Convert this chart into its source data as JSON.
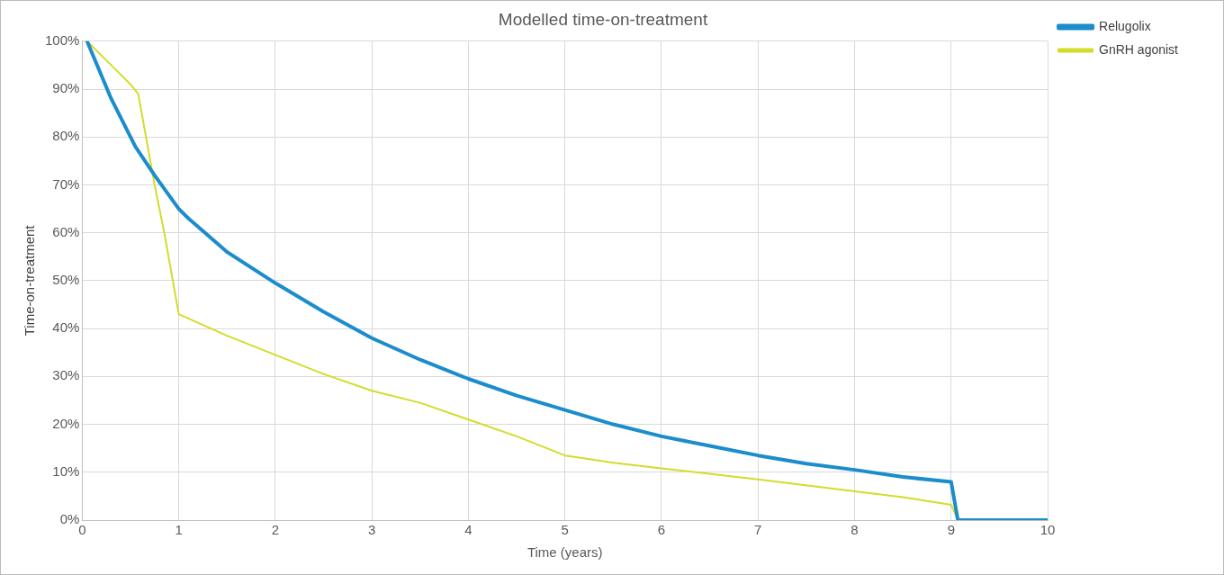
{
  "chart_data": {
    "type": "line",
    "title": "Modelled time-on-treatment",
    "xlabel": "Time (years)",
    "ylabel": "Time-on-treatment",
    "xlim": [
      0,
      10
    ],
    "xticks": [
      0,
      1,
      2,
      3,
      4,
      5,
      6,
      7,
      8,
      9,
      10
    ],
    "ylim": [
      0,
      100
    ],
    "yticks": [
      {
        "value": 0,
        "label": "0%"
      },
      {
        "value": 10,
        "label": "10%"
      },
      {
        "value": 20,
        "label": "20%"
      },
      {
        "value": 30,
        "label": "30%"
      },
      {
        "value": 40,
        "label": "40%"
      },
      {
        "value": 50,
        "label": "50%"
      },
      {
        "value": 60,
        "label": "60%"
      },
      {
        "value": 70,
        "label": "70%"
      },
      {
        "value": 80,
        "label": "80%"
      },
      {
        "value": 90,
        "label": "90%"
      },
      {
        "value": 100,
        "label": "100%"
      }
    ],
    "grid": true,
    "legend": "top right",
    "marker": "none",
    "line_style": "solid",
    "series": [
      {
        "name": "Relugolix",
        "color": "#1b8ccc",
        "x": [
          0.05,
          0.3,
          0.55,
          0.75,
          1,
          1.1,
          1.5,
          2,
          2.5,
          3,
          3.5,
          4,
          4.5,
          5,
          5.5,
          6,
          6.5,
          7,
          7.5,
          8,
          8.5,
          9,
          9.07,
          10
        ],
        "values": [
          100,
          88,
          78,
          72,
          65,
          63,
          56,
          49.5,
          43.5,
          38,
          33.5,
          29.5,
          26,
          23,
          20,
          17.5,
          15.5,
          13.5,
          11.8,
          10.5,
          9,
          8,
          0,
          0
        ]
      },
      {
        "name": "GnRH agonist",
        "color": "#d4dc2a",
        "x": [
          0.05,
          0.3,
          0.5,
          0.58,
          0.75,
          0.85,
          1,
          1.5,
          2,
          2.5,
          3,
          3.5,
          4,
          4.5,
          5,
          5.5,
          6,
          7,
          8,
          8.5,
          9,
          9.07,
          10
        ],
        "values": [
          100,
          95,
          91,
          89,
          70,
          60,
          43,
          38.5,
          34.5,
          30.5,
          27,
          24.5,
          21,
          17.5,
          13.5,
          12,
          10.8,
          8.5,
          6,
          4.8,
          3.2,
          0,
          0
        ]
      }
    ]
  }
}
